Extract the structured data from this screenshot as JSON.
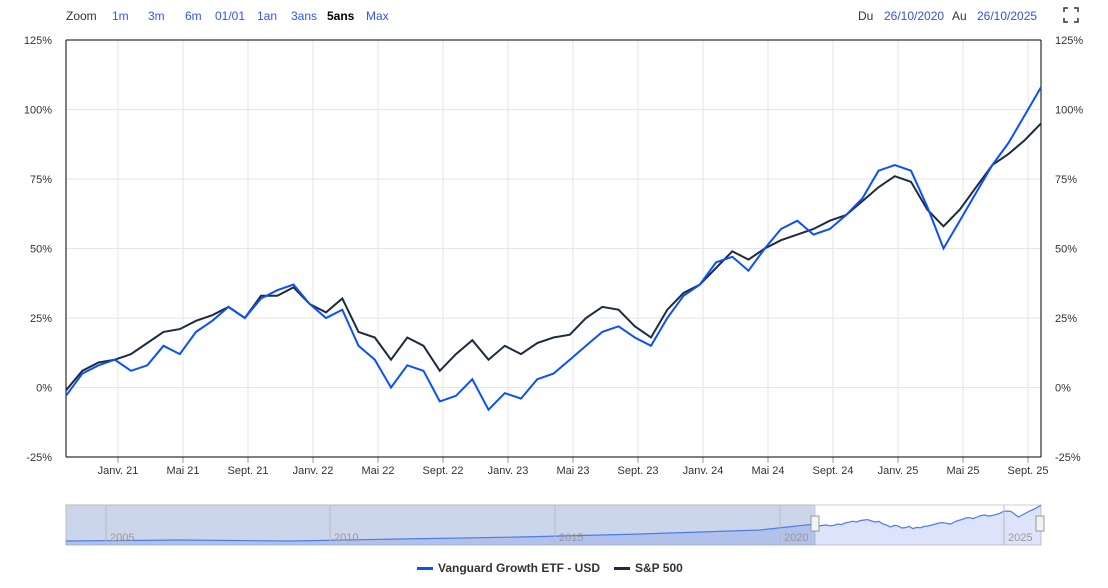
{
  "toolbar": {
    "zoom_label": "Zoom",
    "ranges": [
      "1m",
      "3m",
      "6m",
      "01/01",
      "1an",
      "3ans",
      "5ans",
      "Max"
    ],
    "active_range": "5ans",
    "from_label": "Du",
    "from_date": "26/10/2020",
    "to_label": "Au",
    "to_date": "26/10/2025"
  },
  "colors": {
    "vug": "#0a50ff",
    "sp": "#1c2b3f",
    "grid": "#e6e6e6"
  },
  "chart_data": {
    "type": "line",
    "x": [
      "Oct20",
      "Nov20",
      "Dec20",
      "Jan21",
      "Feb21",
      "Mar21",
      "Apr21",
      "May21",
      "Jun21",
      "Jul21",
      "Aug21",
      "Sep21",
      "Oct21",
      "Nov21",
      "Dec21",
      "Jan22",
      "Feb22",
      "Mar22",
      "Apr22",
      "May22",
      "Jun22",
      "Jul22",
      "Aug22",
      "Sep22",
      "Oct22",
      "Nov22",
      "Dec22",
      "Jan23",
      "Feb23",
      "Mar23",
      "Apr23",
      "May23",
      "Jun23",
      "Jul23",
      "Aug23",
      "Sep23",
      "Oct23",
      "Nov23",
      "Dec23",
      "Jan24",
      "Feb24",
      "Mar24",
      "Apr24",
      "May24",
      "Jun24",
      "Jul24",
      "Aug24",
      "Sep24",
      "Oct24",
      "Nov24",
      "Dec24",
      "Jan25",
      "Feb25",
      "Mar25",
      "Apr25",
      "May25",
      "Jun25",
      "Jul25",
      "Aug25",
      "Sep25",
      "Oct25"
    ],
    "series": [
      {
        "name": "Vanguard Growth ETF - USD",
        "values": [
          -3,
          5,
          8,
          10,
          6,
          8,
          15,
          12,
          20,
          24,
          29,
          25,
          32,
          35,
          37,
          30,
          25,
          28,
          15,
          10,
          0,
          8,
          6,
          -5,
          -3,
          3,
          -8,
          -2,
          -4,
          3,
          5,
          10,
          15,
          20,
          22,
          18,
          15,
          25,
          33,
          37,
          45,
          47,
          42,
          50,
          57,
          60,
          55,
          57,
          62,
          68,
          78,
          80,
          78,
          65,
          50,
          60,
          70,
          80,
          88,
          98,
          108
        ]
      },
      {
        "name": "S&P 500",
        "values": [
          -1,
          6,
          9,
          10,
          12,
          16,
          20,
          21,
          24,
          26,
          29,
          25,
          33,
          33,
          36,
          30,
          27,
          32,
          20,
          18,
          10,
          18,
          15,
          6,
          12,
          17,
          10,
          15,
          12,
          16,
          18,
          19,
          25,
          29,
          28,
          22,
          18,
          28,
          34,
          37,
          43,
          49,
          46,
          50,
          53,
          55,
          57,
          60,
          62,
          67,
          72,
          76,
          74,
          64,
          58,
          64,
          72,
          80,
          84,
          89,
          95
        ]
      }
    ],
    "x_tick_labels": [
      "Janv. 21",
      "Mai 21",
      "Sept. 21",
      "Janv. 22",
      "Mai 22",
      "Sept. 22",
      "Janv. 23",
      "Mai 23",
      "Sept. 23",
      "Janv. 24",
      "Mai 24",
      "Sept. 24",
      "Janv. 25",
      "Mai 25",
      "Sept. 25"
    ],
    "x_tick_month_index": [
      3,
      7,
      11,
      15,
      19,
      23,
      27,
      31,
      35,
      39,
      43,
      47,
      51,
      55,
      59
    ],
    "y_ticks": [
      -25,
      0,
      25,
      50,
      75,
      100,
      125
    ],
    "y_tick_labels": [
      "-25%",
      "0%",
      "25%",
      "50%",
      "75%",
      "100%",
      "125%"
    ],
    "ylim": [
      -25,
      125
    ],
    "navigator_labels": [
      "2005",
      "2010",
      "2015",
      "2020",
      "2025"
    ],
    "legend": [
      "Vanguard Growth ETF - USD",
      "S&P 500"
    ],
    "legend_position": "bottom-center"
  }
}
